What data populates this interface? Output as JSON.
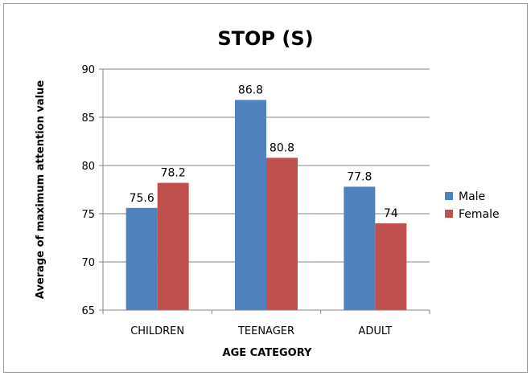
{
  "chart_data": {
    "type": "bar",
    "title": "STOP (S)",
    "xlabel": "AGE CATEGORY",
    "ylabel": "Average of maximum attention value",
    "categories": [
      "CHILDREN",
      "TEENAGER",
      "ADULT"
    ],
    "series": [
      {
        "name": "Male",
        "values": [
          75.6,
          86.8,
          77.8
        ],
        "labels": [
          "75.6",
          "86.8",
          "77.8"
        ],
        "color": "#4f81bd"
      },
      {
        "name": "Female",
        "values": [
          78.2,
          80.8,
          74
        ],
        "labels": [
          "78.2",
          "80.8",
          "74"
        ],
        "color": "#c0504d"
      }
    ],
    "ylim": [
      65,
      90
    ],
    "yticks": [
      "65",
      "70",
      "75",
      "80",
      "85",
      "90"
    ],
    "grid": true,
    "legend": "right"
  }
}
